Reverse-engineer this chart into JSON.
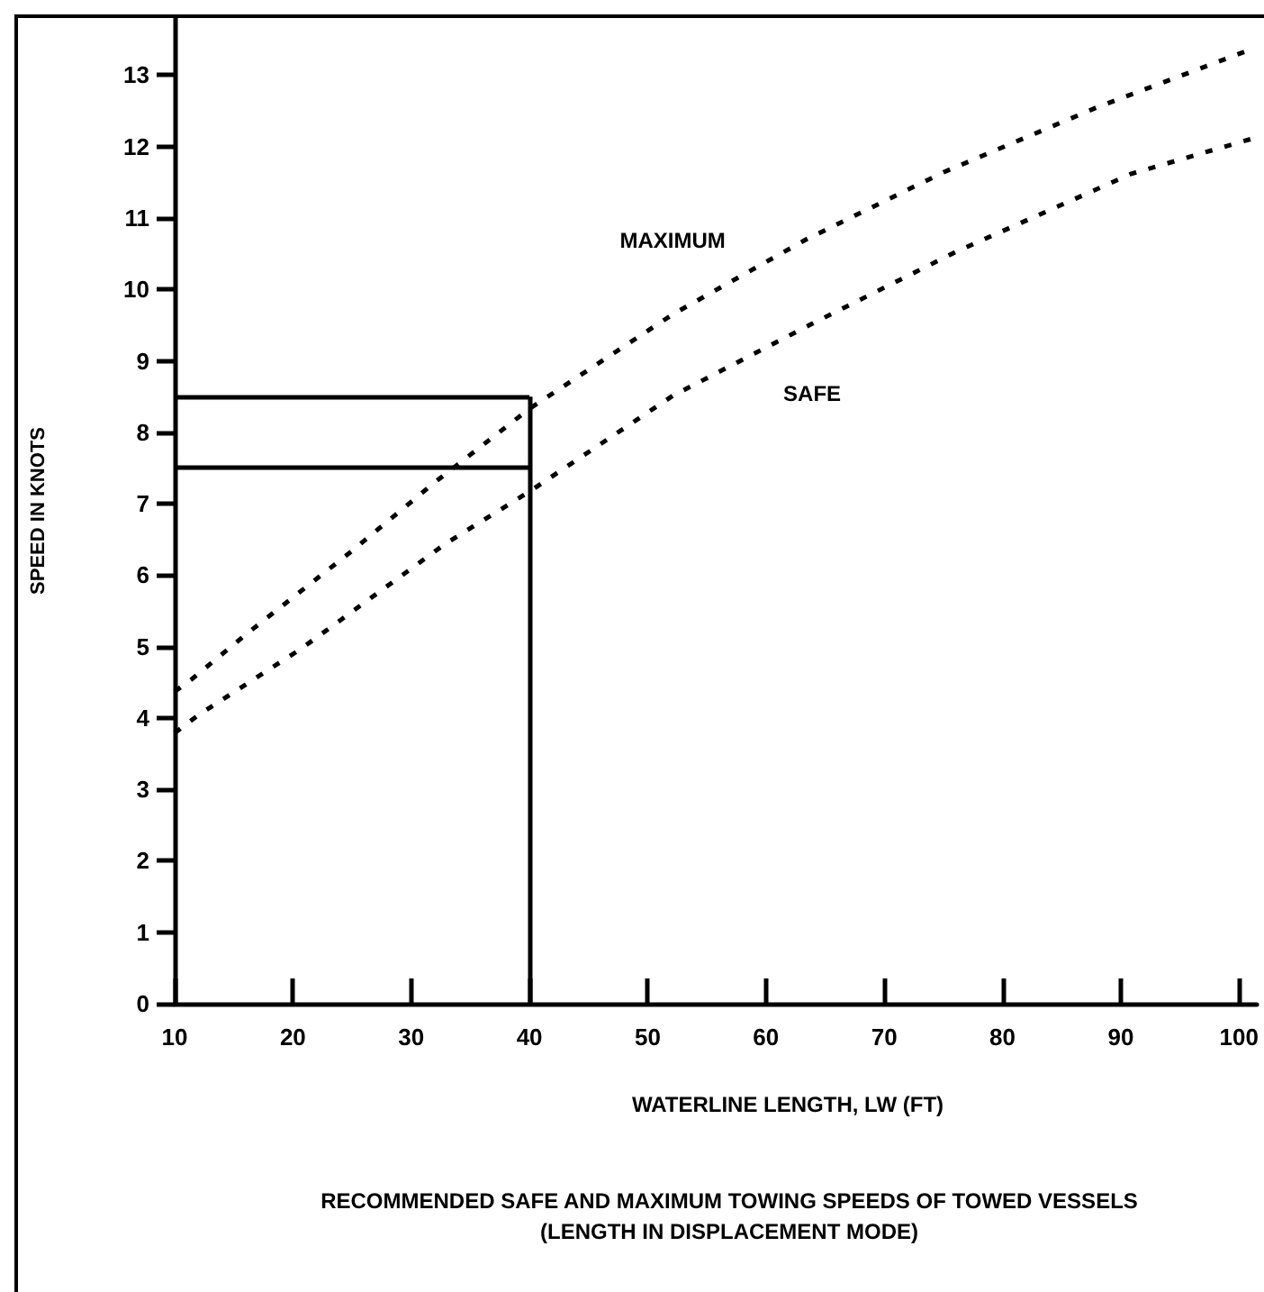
{
  "chart_data": {
    "type": "line",
    "title": "RECOMMENDED SAFE AND MAXIMUM TOWING SPEEDS OF TOWED VESSELS\n(LENGTH IN DISPLACEMENT MODE)",
    "xlabel": "WATERLINE LENGTH, LW (FT)",
    "ylabel": "SPEED IN KNOTS",
    "xlim": [
      10,
      101.5
    ],
    "ylim": [
      0,
      13.8
    ],
    "xticks": [
      10,
      20,
      30,
      40,
      50,
      60,
      70,
      80,
      90,
      100
    ],
    "yticks": [
      0,
      1,
      2,
      3,
      4,
      5,
      6,
      7,
      8,
      9,
      10,
      11,
      12,
      13
    ],
    "grid": false,
    "legend": false,
    "marker": "none",
    "line_style": "dotted",
    "series": [
      {
        "name": "MAXIMUM",
        "color": "#000000",
        "x": [
          10,
          11.5,
          16.1,
          24.7,
          32,
          40,
          52.1,
          63.4,
          75,
          88,
          100.5
        ],
        "values": [
          4.37,
          4.55,
          5.18,
          6.3,
          7.3,
          8.33,
          9.65,
          10.7,
          11.64,
          12.55,
          13.33
        ]
      },
      {
        "name": "SAFE",
        "color": "#000000",
        "x": [
          10,
          12,
          20.7,
          32.9,
          40,
          52.1,
          63.9,
          76.1,
          90.9,
          101.3
        ],
        "values": [
          3.79,
          4.04,
          4.97,
          6.44,
          7.17,
          8.51,
          9.52,
          10.53,
          11.62,
          12.12
        ]
      }
    ],
    "ref_lines": [
      {
        "axis": "x",
        "value": 40,
        "color": "#000000"
      },
      {
        "axis": "y",
        "value": 8.5,
        "color": "#000000"
      },
      {
        "axis": "y",
        "value": 7.5,
        "color": "#000000"
      }
    ]
  }
}
